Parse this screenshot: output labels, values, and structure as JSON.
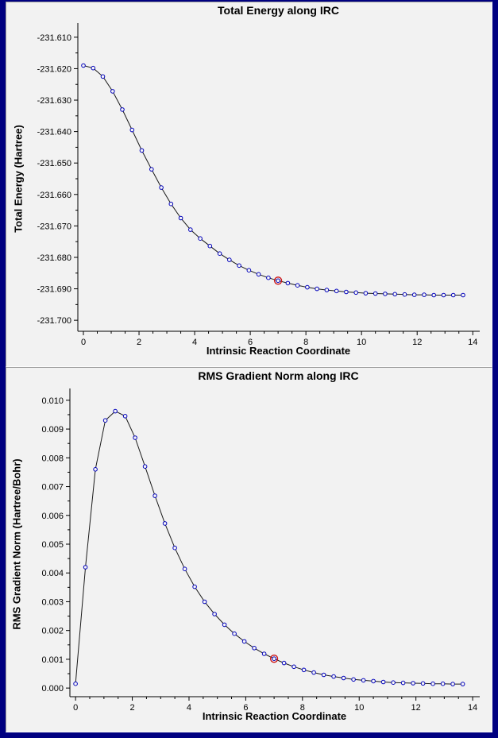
{
  "window": {
    "border_color": "#000080",
    "background_color": "#f2f2f2"
  },
  "chart_data": [
    {
      "type": "line",
      "title": "Total Energy along IRC",
      "xlabel": "Intrinsic Reaction Coordinate",
      "ylabel": "Total Energy (Hartree)",
      "xlim": [
        -0.2,
        14.25
      ],
      "ylim": [
        -231.7035,
        -231.6065
      ],
      "grid": false,
      "legend": null,
      "x_ticks": {
        "values": [
          0,
          2,
          4,
          6,
          8,
          10,
          12,
          14
        ],
        "labels": [
          "0",
          "2",
          "4",
          "6",
          "8",
          "10",
          "12",
          "14"
        ]
      },
      "x_minor_divs": 4,
      "y_ticks": {
        "values": [
          -231.61,
          -231.62,
          -231.63,
          -231.64,
          -231.65,
          -231.66,
          -231.67,
          -231.68,
          -231.69,
          -231.7
        ],
        "labels": [
          "-231.610",
          "-231.620",
          "-231.630",
          "-231.640",
          "-231.650",
          "-231.660",
          "-231.670",
          "-231.680",
          "-231.690",
          "-231.700"
        ]
      },
      "y_minor_divs": 2,
      "x": [
        0,
        0.35,
        0.7,
        1.05,
        1.4,
        1.75,
        2.1,
        2.45,
        2.8,
        3.15,
        3.5,
        3.85,
        4.2,
        4.55,
        4.9,
        5.25,
        5.6,
        5.95,
        6.3,
        6.65,
        7.0,
        7.35,
        7.7,
        8.05,
        8.4,
        8.75,
        9.1,
        9.45,
        9.8,
        10.15,
        10.5,
        10.85,
        11.2,
        11.55,
        11.9,
        12.25,
        12.6,
        12.95,
        13.3,
        13.65
      ],
      "y": [
        -231.619,
        -231.6198,
        -231.6225,
        -231.6272,
        -231.633,
        -231.6395,
        -231.646,
        -231.652,
        -231.6578,
        -231.663,
        -231.6675,
        -231.6712,
        -231.674,
        -231.6764,
        -231.6788,
        -231.6808,
        -231.6826,
        -231.6841,
        -231.6854,
        -231.6865,
        -231.6874,
        -231.6882,
        -231.6889,
        -231.6895,
        -231.69,
        -231.6904,
        -231.6907,
        -231.691,
        -231.6912,
        -231.6914,
        -231.6915,
        -231.6916,
        -231.6917,
        -231.6918,
        -231.6919,
        -231.6919,
        -231.692,
        -231.692,
        -231.692,
        -231.692
      ],
      "highlight_index": 20,
      "colors": {
        "line": "#1a1a1a",
        "marker": "#0000bb",
        "marker_fill": "#f6f6f6",
        "highlight": "#cc1111",
        "axis": "#000000"
      }
    },
    {
      "type": "line",
      "title": "RMS Gradient Norm along IRC",
      "xlabel": "Intrinsic Reaction Coordinate",
      "ylabel": "RMS Gradient Norm (Hartree/Bohr)",
      "xlim": [
        -0.2,
        14.25
      ],
      "ylim": [
        -0.0003,
        0.0103
      ],
      "grid": false,
      "legend": null,
      "x_ticks": {
        "values": [
          0,
          2,
          4,
          6,
          8,
          10,
          12,
          14
        ],
        "labels": [
          "0",
          "2",
          "4",
          "6",
          "8",
          "10",
          "12",
          "14"
        ]
      },
      "x_minor_divs": 4,
      "y_ticks": {
        "values": [
          0,
          0.001,
          0.002,
          0.003,
          0.004,
          0.005,
          0.006,
          0.007,
          0.008,
          0.009,
          0.01
        ],
        "labels": [
          "0.000",
          "0.001",
          "0.002",
          "0.003",
          "0.004",
          "0.005",
          "0.006",
          "0.007",
          "0.008",
          "0.009",
          "0.010"
        ]
      },
      "y_minor_divs": 2,
      "x": [
        0,
        0.35,
        0.7,
        1.05,
        1.4,
        1.75,
        2.1,
        2.45,
        2.8,
        3.15,
        3.5,
        3.85,
        4.2,
        4.55,
        4.9,
        5.25,
        5.6,
        5.95,
        6.3,
        6.65,
        7.0,
        7.35,
        7.7,
        8.05,
        8.4,
        8.75,
        9.1,
        9.45,
        9.8,
        10.15,
        10.5,
        10.85,
        11.2,
        11.55,
        11.9,
        12.25,
        12.6,
        12.95,
        13.3,
        13.65
      ],
      "y": [
        0.00015,
        0.0042,
        0.0076,
        0.0093,
        0.00962,
        0.00945,
        0.0087,
        0.0077,
        0.00668,
        0.00572,
        0.00487,
        0.00414,
        0.00352,
        0.003,
        0.00257,
        0.0022,
        0.00189,
        0.00162,
        0.00139,
        0.00119,
        0.00102,
        0.00087,
        0.00074,
        0.00063,
        0.00054,
        0.00046,
        0.0004,
        0.00035,
        0.0003,
        0.00027,
        0.00024,
        0.00021,
        0.00019,
        0.00018,
        0.00017,
        0.00016,
        0.00015,
        0.00015,
        0.00014,
        0.00014
      ],
      "highlight_index": 20,
      "colors": {
        "line": "#1a1a1a",
        "marker": "#0000bb",
        "marker_fill": "#f6f6f6",
        "highlight": "#cc1111",
        "axis": "#000000"
      }
    }
  ]
}
